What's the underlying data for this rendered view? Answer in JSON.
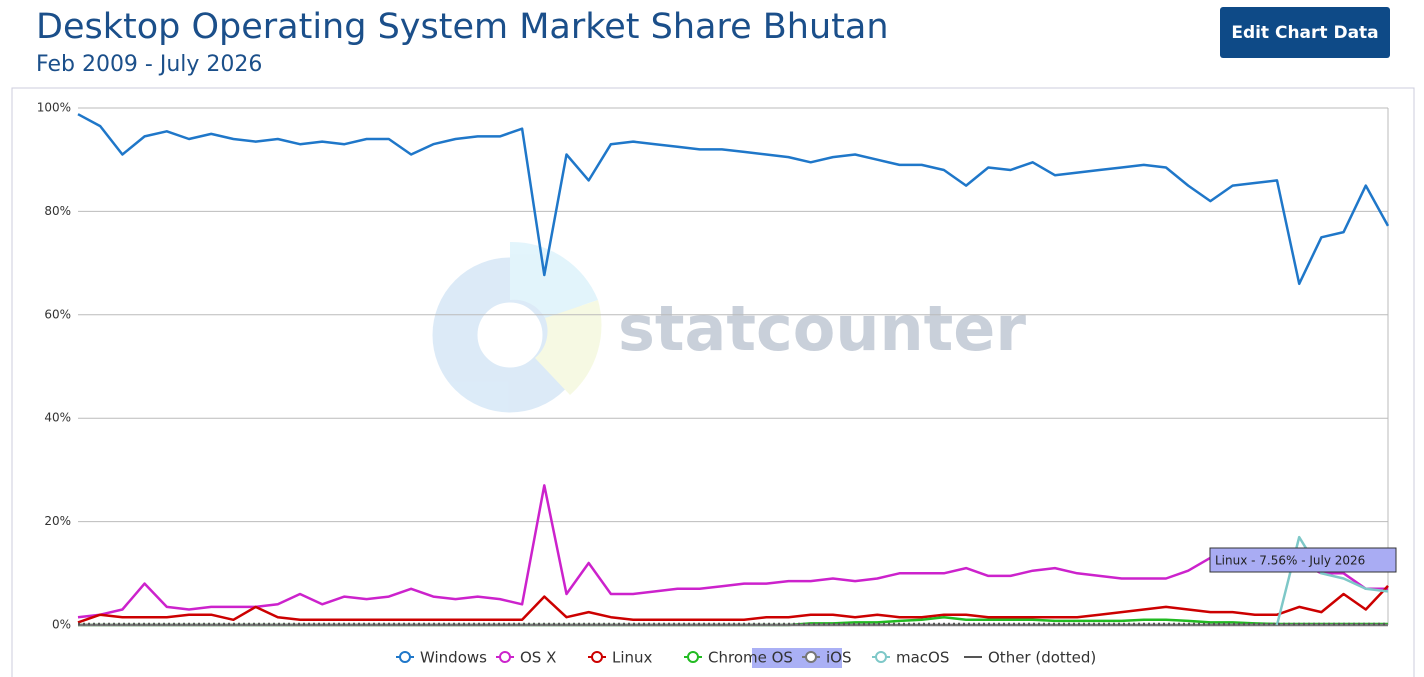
{
  "chart_data": {
    "type": "line",
    "title": "Desktop Operating System Market Share Bhutan",
    "subtitle": "Feb 2009 - July 2026",
    "watermark": "statcounter",
    "annotation": "Linux - 7.56% - July 2026",
    "ylim": [
      0,
      100
    ],
    "yticks": [
      {
        "value": 0,
        "label": "0%"
      },
      {
        "value": 20,
        "label": "20%"
      },
      {
        "value": 40,
        "label": "40%"
      },
      {
        "value": 60,
        "label": "60%"
      },
      {
        "value": 80,
        "label": "80%"
      },
      {
        "value": 100,
        "label": "100%"
      }
    ],
    "grid": true,
    "legend": "bottom",
    "series": [
      {
        "name": "Windows",
        "color": "#1f77c9",
        "values": [
          98.8,
          96.5,
          91,
          94.5,
          95.5,
          94,
          95,
          94,
          93.5,
          94,
          93,
          93.5,
          93,
          94,
          94,
          91,
          93,
          94,
          94.5,
          94.5,
          96,
          67.7,
          91,
          86,
          93,
          93.5,
          93,
          92.5,
          92,
          92,
          91.5,
          91,
          90.5,
          89.5,
          90.5,
          91,
          90,
          89,
          89,
          88,
          85,
          88.5,
          88,
          89.5,
          87,
          87.5,
          88,
          88.5,
          89,
          88.5,
          85,
          82,
          85,
          85.5,
          86,
          66,
          75,
          76,
          85,
          77.2
        ]
      },
      {
        "name": "OS X",
        "color": "#cc22cc",
        "values": [
          1.5,
          2,
          3,
          8,
          3.5,
          3,
          3.5,
          3.5,
          3.5,
          4,
          6,
          4,
          5.5,
          5,
          5.5,
          7,
          5.5,
          5,
          5.5,
          5,
          4,
          27,
          6,
          12,
          6,
          6,
          6.5,
          7,
          7,
          7.5,
          8,
          8,
          8.5,
          8.5,
          9,
          8.5,
          9,
          10,
          10,
          10,
          11,
          9.5,
          9.5,
          10.5,
          11,
          10,
          9.5,
          9,
          9,
          9,
          10.5,
          13,
          14.5,
          12,
          11,
          12,
          10,
          10,
          7,
          7
        ]
      },
      {
        "name": "Linux",
        "color": "#cc0000",
        "values": [
          0.5,
          2,
          1.5,
          1.5,
          1.5,
          2,
          2,
          1,
          3.5,
          1.5,
          1,
          1,
          1,
          1,
          1,
          1,
          1,
          1,
          1,
          1,
          1,
          5.5,
          1.5,
          2.5,
          1.5,
          1,
          1,
          1,
          1,
          1,
          1,
          1.5,
          1.5,
          2,
          2,
          1.5,
          2,
          1.5,
          1.5,
          2,
          2,
          1.5,
          1.5,
          1.5,
          1.5,
          1.5,
          2,
          2.5,
          3,
          3.5,
          3,
          2.5,
          2.5,
          2,
          2,
          3.5,
          2.5,
          6,
          3,
          7.56
        ]
      },
      {
        "name": "Chrome OS",
        "color": "#22bb22",
        "values": [
          0,
          0,
          0,
          0,
          0,
          0,
          0,
          0,
          0,
          0,
          0,
          0,
          0,
          0,
          0,
          0,
          0,
          0,
          0,
          0,
          0,
          0,
          0,
          0,
          0,
          0,
          0,
          0,
          0,
          0,
          0,
          0,
          0,
          0.3,
          0.3,
          0.5,
          0.5,
          0.8,
          1,
          1.5,
          1,
          1,
          1,
          1,
          0.8,
          0.8,
          0.8,
          0.8,
          1,
          1,
          0.8,
          0.5,
          0.5,
          0.3,
          0.2,
          0.2,
          0.2,
          0.2,
          0.2,
          0.2
        ]
      },
      {
        "name": "iOS",
        "color": "#777777",
        "values": [
          0,
          0,
          0,
          0,
          0,
          0,
          0,
          0,
          0,
          0,
          0,
          0,
          0,
          0,
          0,
          0,
          0,
          0,
          0,
          0,
          0,
          0,
          0,
          0,
          0,
          0,
          0,
          0,
          0,
          0,
          0,
          0,
          0,
          0,
          0,
          0,
          0,
          0,
          0,
          0,
          0,
          0,
          0,
          0,
          0,
          0,
          0,
          0,
          0,
          0,
          0,
          0,
          0,
          0,
          0,
          0,
          0,
          0,
          0,
          0
        ]
      },
      {
        "name": "macOS",
        "color": "#7ec8c8",
        "values": [
          null,
          null,
          null,
          null,
          null,
          null,
          null,
          null,
          null,
          null,
          null,
          null,
          null,
          null,
          null,
          null,
          null,
          null,
          null,
          null,
          null,
          null,
          null,
          null,
          null,
          null,
          null,
          null,
          null,
          null,
          null,
          null,
          null,
          null,
          null,
          null,
          null,
          null,
          null,
          null,
          null,
          null,
          null,
          null,
          null,
          null,
          null,
          null,
          null,
          null,
          null,
          null,
          null,
          null,
          0,
          17,
          10,
          9,
          7,
          6.5
        ]
      },
      {
        "name": "Other (dotted)",
        "color": "#555555",
        "dash": "dotted",
        "values": [
          0.2,
          0.2,
          0.2,
          0.2,
          0.2,
          0.2,
          0.2,
          0.2,
          0.2,
          0.2,
          0.2,
          0.2,
          0.2,
          0.2,
          0.2,
          0.2,
          0.2,
          0.2,
          0.2,
          0.2,
          0.2,
          0.2,
          0.2,
          0.2,
          0.2,
          0.2,
          0.2,
          0.2,
          0.2,
          0.2,
          0.2,
          0.2,
          0.2,
          0.2,
          0.2,
          0.2,
          0.2,
          0.2,
          0.2,
          0.2,
          0.2,
          0.2,
          0.2,
          0.2,
          0.2,
          0.2,
          0.2,
          0.2,
          0.2,
          0.2,
          0.2,
          0.2,
          0.2,
          0.2,
          0.2,
          0.2,
          0.2,
          0.2,
          0.2,
          0.2
        ]
      }
    ]
  },
  "ui": {
    "button": "Edit Chart Data"
  }
}
